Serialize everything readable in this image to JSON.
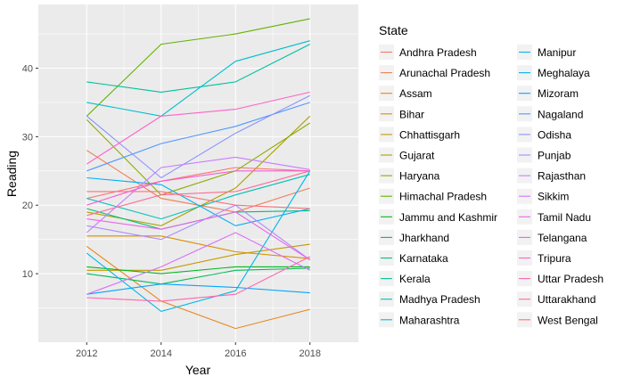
{
  "chart_data": {
    "type": "line",
    "xlabel": "Year",
    "ylabel": "Reading",
    "legend_title": "State",
    "legend_position": "right",
    "grid": true,
    "panel_background": "#ebebeb",
    "x": [
      2012,
      2014,
      2016,
      2018
    ],
    "x_ticks": [
      "2012",
      "2014",
      "2016",
      "2018"
    ],
    "xlim": [
      2010.7,
      2019.3
    ],
    "y_ticks": [
      "10",
      "20",
      "30",
      "40"
    ],
    "ylim": [
      0,
      49.3
    ],
    "series": [
      {
        "name": "Andhra Pradesh",
        "color": "#F8766D",
        "values": [
          21.0,
          23.5,
          25.5,
          25.0
        ]
      },
      {
        "name": "Arunachal Pradesh",
        "color": "#F27D52",
        "values": [
          28.0,
          21.0,
          19.0,
          22.5
        ]
      },
      {
        "name": "Assam",
        "color": "#E7861B",
        "values": [
          14.0,
          6.0,
          2.0,
          4.8
        ]
      },
      {
        "name": "Bihar",
        "color": "#D89000",
        "values": [
          15.5,
          15.5,
          13.2,
          12.2
        ]
      },
      {
        "name": "Chhattisgarh",
        "color": "#C49A00",
        "values": [
          10.5,
          10.5,
          12.8,
          14.3
        ]
      },
      {
        "name": "Gujarat",
        "color": "#ABA300",
        "values": [
          19.0,
          17.0,
          22.5,
          33.0
        ]
      },
      {
        "name": "Haryana",
        "color": "#8EAB00",
        "values": [
          32.5,
          21.5,
          25.0,
          32.0
        ]
      },
      {
        "name": "Himachal Pradesh",
        "color": "#64B200",
        "values": [
          33.0,
          43.5,
          45.0,
          47.2
        ]
      },
      {
        "name": "Jammu and Kashmir",
        "color": "#00B81F",
        "values": [
          11.0,
          10.0,
          11.0,
          11.0
        ]
      },
      {
        "name": "Jharkhand",
        "color": "#00BC56",
        "values": [
          10.0,
          8.5,
          10.5,
          10.8
        ]
      },
      {
        "name": "Karnataka",
        "color": "#00BF7D",
        "values": [
          19.5,
          16.5,
          19.0,
          19.2
        ]
      },
      {
        "name": "Kerala",
        "color": "#00C19F",
        "values": [
          38.0,
          36.5,
          38.0,
          43.5
        ]
      },
      {
        "name": "Madhya Pradesh",
        "color": "#00C0B8",
        "values": [
          21.0,
          18.0,
          21.5,
          24.5
        ]
      },
      {
        "name": "Maharashtra",
        "color": "#00BDD0",
        "values": [
          35.0,
          33.0,
          41.0,
          44.0
        ]
      },
      {
        "name": "Manipur",
        "color": "#00B8E5",
        "values": [
          13.0,
          4.5,
          7.5,
          25.0
        ]
      },
      {
        "name": "Meghalaya",
        "color": "#00B0F6",
        "values": [
          24.0,
          23.0,
          17.0,
          19.5
        ]
      },
      {
        "name": "Mizoram",
        "color": "#00A5FF",
        "values": [
          7.0,
          8.5,
          8.0,
          7.2
        ]
      },
      {
        "name": "Nagaland",
        "color": "#4F97FF",
        "values": [
          25.0,
          29.0,
          31.5,
          35.0
        ]
      },
      {
        "name": "Odisha",
        "color": "#8B93FF",
        "values": [
          33.0,
          24.0,
          30.5,
          36.0
        ]
      },
      {
        "name": "Punjab",
        "color": "#AC88FF",
        "values": [
          17.0,
          15.0,
          20.0,
          12.0
        ]
      },
      {
        "name": "Rajasthan",
        "color": "#C77CFF",
        "values": [
          16.0,
          25.5,
          27.0,
          25.2
        ]
      },
      {
        "name": "Sikkim",
        "color": "#DA70F7",
        "values": [
          7.0,
          11.0,
          16.0,
          10.5
        ]
      },
      {
        "name": "Tamil Nadu",
        "color": "#EB64EA",
        "values": [
          18.0,
          16.5,
          19.0,
          12.0
        ]
      },
      {
        "name": "Telangana",
        "color": "#F75DD9",
        "values": [
          20.0,
          23.5,
          25.0,
          25.0
        ]
      },
      {
        "name": "Tripura",
        "color": "#FE61C8",
        "values": [
          26.0,
          33.0,
          34.0,
          36.5
        ]
      },
      {
        "name": "Uttar Pradesh",
        "color": "#FF66B2",
        "values": [
          6.5,
          6.0,
          7.0,
          12.5
        ]
      },
      {
        "name": "Uttarakhand",
        "color": "#FF6C99",
        "values": [
          18.5,
          21.5,
          22.0,
          25.0
        ]
      },
      {
        "name": "West Bengal",
        "color": "#FB727C",
        "values": [
          22.0,
          22.0,
          20.0,
          19.5
        ]
      }
    ]
  }
}
